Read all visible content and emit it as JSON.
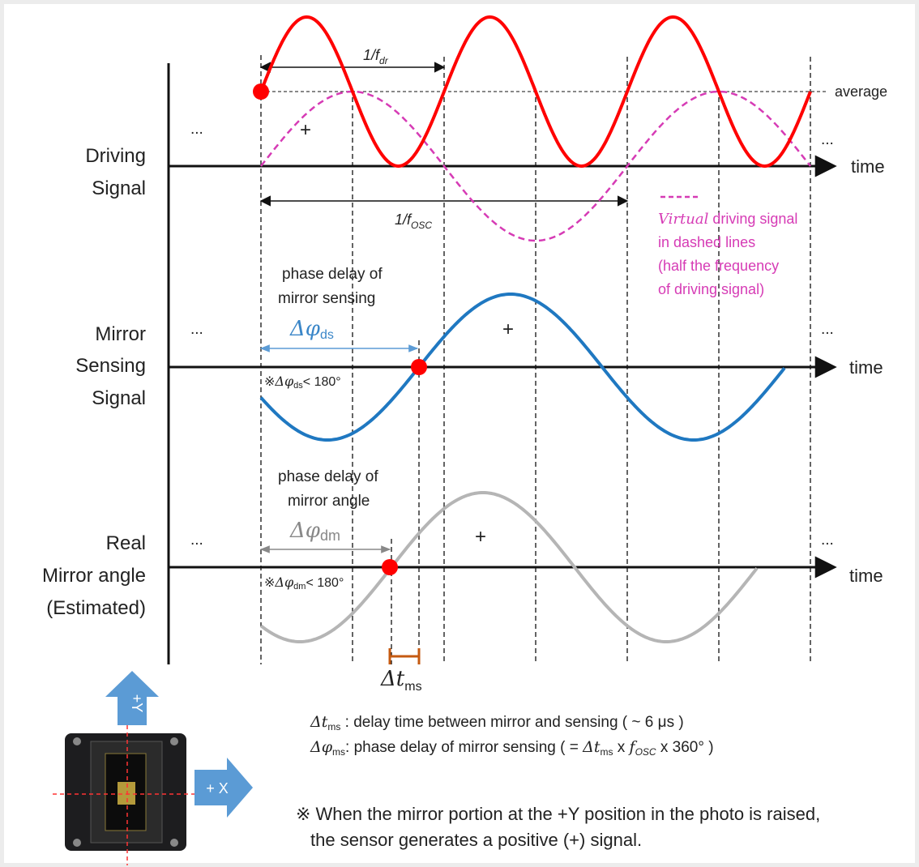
{
  "rows": [
    {
      "label": [
        "Driving",
        "Signal"
      ]
    },
    {
      "label": [
        "Mirror",
        "Sensing",
        "Signal"
      ]
    },
    {
      "label": [
        "Real",
        "Mirror angle",
        "(Estimated)"
      ]
    }
  ],
  "axis_label": [
    "time",
    "time",
    "time"
  ],
  "ellipsis": "...",
  "plus": "+",
  "average": "average",
  "period_dr": [
    "1/f",
    "dr"
  ],
  "period_osc": [
    "1/f",
    "OSC"
  ],
  "virtual_legend": [
    "Virtual",
    " driving signal",
    "in dashed lines",
    "(half the frequency",
    "of driving signal)"
  ],
  "sensing_delay": {
    "caption": [
      "phase delay of",
      "mirror sensing"
    ],
    "symbol": [
      "Δφ",
      "ds"
    ],
    "note": [
      "※",
      "Δφ",
      "ds",
      "< 180°"
    ]
  },
  "angle_delay": {
    "caption": [
      "phase delay of",
      "mirror angle"
    ],
    "symbol": [
      "Δφ",
      "dm"
    ],
    "note": [
      "※",
      "Δφ",
      "dm",
      "< 180°"
    ]
  },
  "delta_t": [
    "Δt",
    "ms"
  ],
  "definitions": [
    [
      "Δt",
      "ms",
      " : delay time between mirror and  sensing ( ~ 6 μs )"
    ],
    [
      "Δφ",
      "ms",
      ": phase delay of mirror sensing ( = ",
      "Δt",
      "ms",
      " x ",
      "f",
      "OSC",
      " x 360° )"
    ]
  ],
  "photo_axes": {
    "y": "+Y",
    "x": "+ X"
  },
  "footnote": [
    "※ When the mirror portion at the +Y position in the photo is raised,",
    "the sensor generates a positive (+) signal."
  ]
}
